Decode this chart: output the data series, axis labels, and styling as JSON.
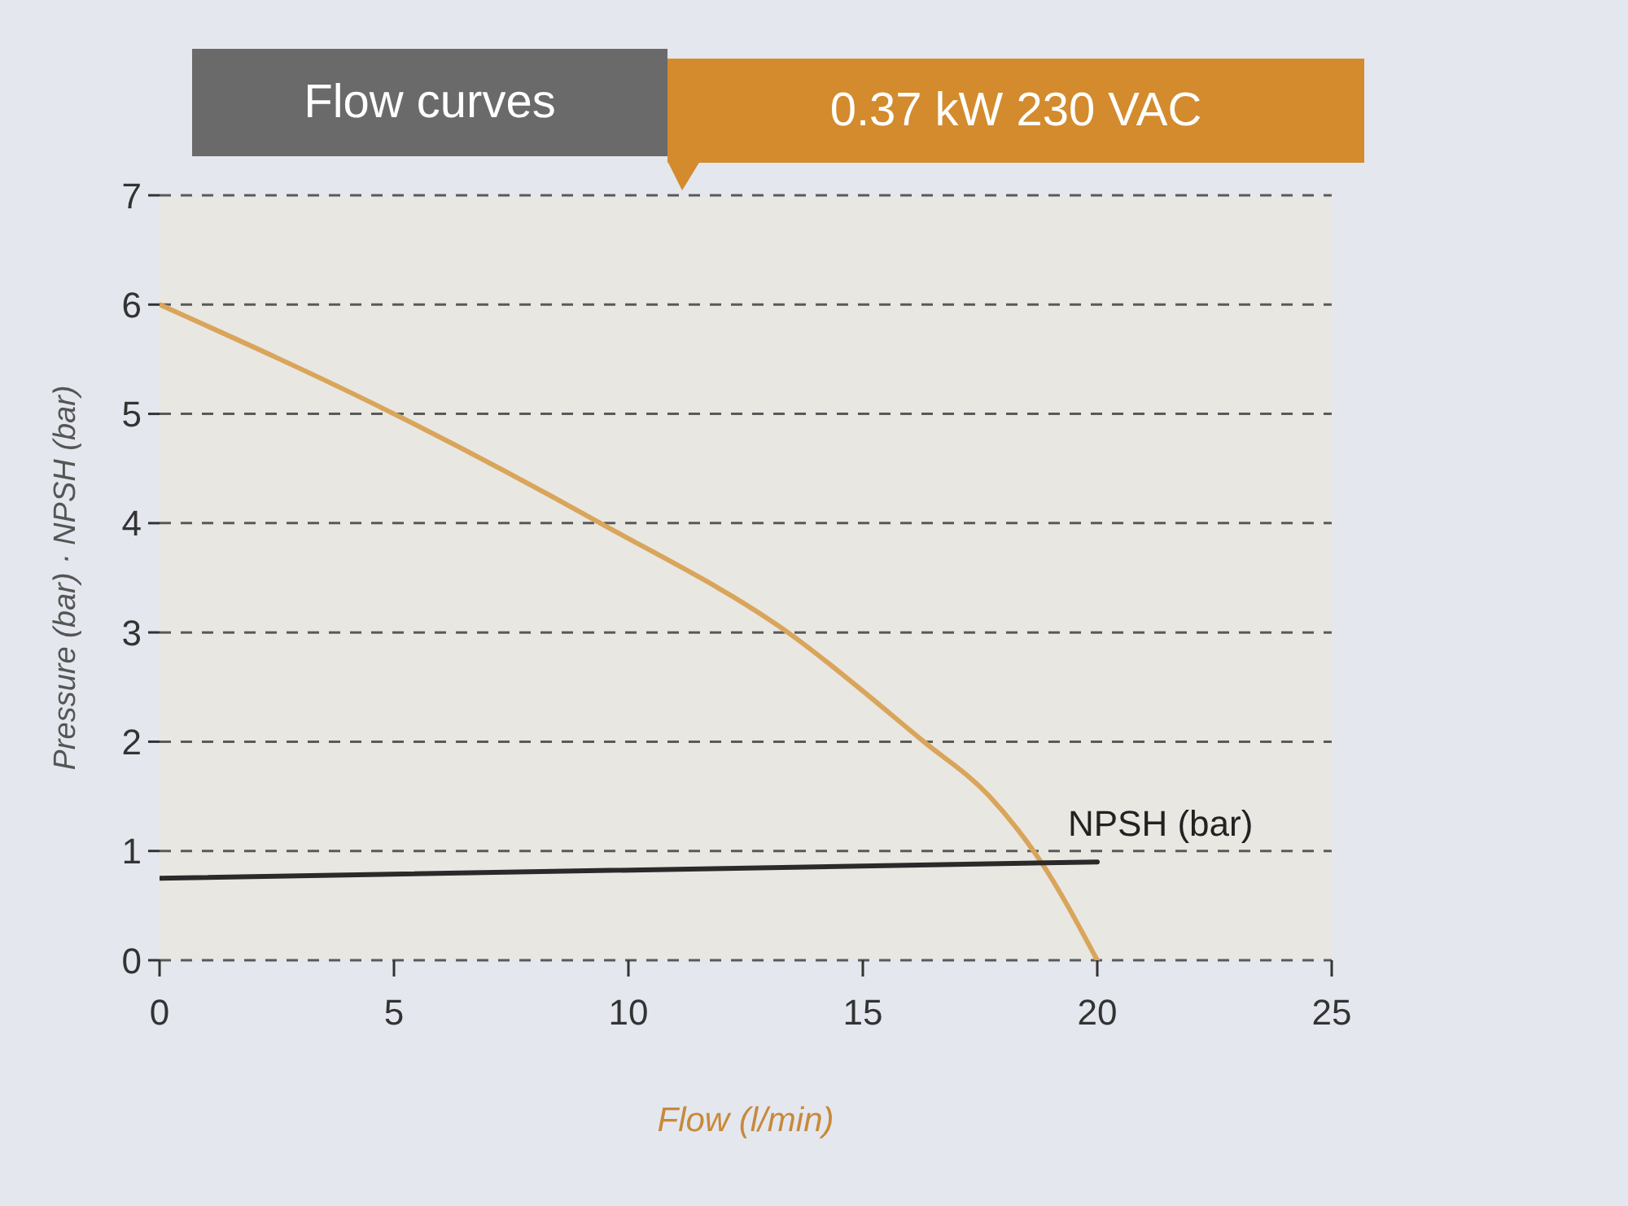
{
  "chart_data": {
    "type": "line",
    "title": "Flow curves",
    "subtitle": "0.37 kW 230 VAC",
    "xlabel": "Flow (l/min)",
    "ylabel": "Pressure (bar) · NPSH (bar)",
    "series": [
      {
        "color": "#d9a55b",
        "x": [
          0,
          5,
          9.4,
          13.4,
          16.3,
          17.7,
          18.8,
          20
        ],
        "values": [
          6,
          5,
          4,
          3,
          2,
          1.5,
          0.9,
          0
        ]
      },
      {
        "name": "NPSH (bar)",
        "color": "#2a2a2a",
        "x": [
          0,
          20
        ],
        "values": [
          0.75,
          0.9
        ]
      }
    ],
    "xlim": [
      0,
      25
    ],
    "xticks": [
      0,
      5,
      10,
      15,
      20,
      25
    ],
    "ylim": [
      0,
      7
    ],
    "yticks": [
      0,
      1,
      2,
      3,
      4,
      5,
      6,
      7
    ],
    "grid": "y",
    "legend": false,
    "marker": "none",
    "line_style": "solid"
  }
}
